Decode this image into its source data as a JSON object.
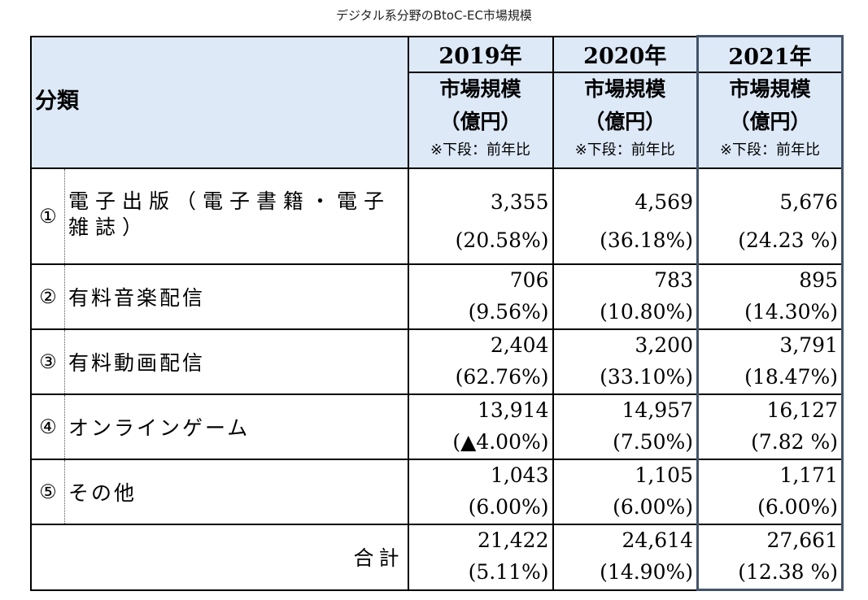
{
  "caption": "デジタル系分野のBtoC-EC市場規模",
  "header": {
    "category_label": "分類",
    "years": [
      "2019年",
      "2020年",
      "2021年"
    ],
    "unit_line1": "市場規模",
    "unit_line2": "（億円）",
    "note": "※下段：前年比"
  },
  "rows": [
    {
      "no": "①",
      "name": "電子出版（電子書籍・電子雑誌）",
      "values": [
        "3,355",
        "4,569",
        "5,676"
      ],
      "ratios": [
        "(20.58%)",
        "(36.18%)",
        "(24.23 %)"
      ]
    },
    {
      "no": "②",
      "name": "有料音楽配信",
      "values": [
        "706",
        "783",
        "895"
      ],
      "ratios": [
        "(9.56%)",
        "(10.80%)",
        "(14.30%)"
      ]
    },
    {
      "no": "③",
      "name": "有料動画配信",
      "values": [
        "2,404",
        "3,200",
        "3,791"
      ],
      "ratios": [
        "(62.76%)",
        "(33.10%)",
        "(18.47%)"
      ]
    },
    {
      "no": "④",
      "name": "オンラインゲーム",
      "values": [
        "13,914",
        "14,957",
        "16,127"
      ],
      "ratios": [
        "(▲4.00%)",
        "(7.50%)",
        "(7.82 %)"
      ]
    },
    {
      "no": "⑤",
      "name": "その他",
      "values": [
        "1,043",
        "1,105",
        "1,171"
      ],
      "ratios": [
        "(6.00%)",
        "(6.00%)",
        "(6.00%)"
      ]
    }
  ],
  "total": {
    "label": "合計",
    "values": [
      "21,422",
      "24,614",
      "27,661"
    ],
    "ratios": [
      "(5.11%)",
      "(14.90%)",
      "(12.38 %)"
    ]
  }
}
